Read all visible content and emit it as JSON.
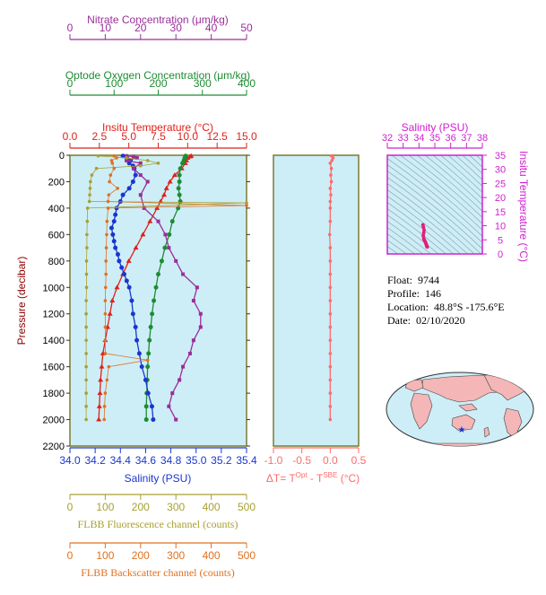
{
  "colors": {
    "nitrate": "#9b2d9b",
    "oxygen": "#1e8c32",
    "temperature": "#e0201a",
    "salinity": "#1a35d0",
    "fluorescence": "#a8a030",
    "backscatter": "#e07020",
    "dt": "#ff6b6b",
    "plot_bg": "#cdeef7",
    "frame": "#7a7a30",
    "ts_frame": "#d020d0"
  },
  "info": {
    "float_label": "Float:",
    "float": "9744",
    "profile_label": "Profile:",
    "profile": "146",
    "location_label": "Location:",
    "location": "48.8°S  -175.6°E",
    "date_label": "Date:",
    "date": "02/10/2020"
  },
  "chart_data": [
    {
      "type": "line",
      "name": "main-profile",
      "ylabel": "Pressure (decibar)",
      "ylim": [
        2200,
        0
      ],
      "yticks": [
        0,
        200,
        400,
        600,
        800,
        1000,
        1200,
        1400,
        1600,
        1800,
        2000,
        2200
      ],
      "axes": {
        "nitrate": {
          "title": "Nitrate Concentration (μm/kg)",
          "range": [
            0,
            50
          ],
          "ticks": [
            0,
            10,
            20,
            30,
            40,
            50
          ]
        },
        "oxygen": {
          "title": "Optode Oxygen Concentration (μm/kg)",
          "range": [
            0,
            400
          ],
          "ticks": [
            0,
            100,
            200,
            300,
            400
          ]
        },
        "temperature": {
          "title": "Insitu Temperature (°C)",
          "range": [
            0,
            15
          ],
          "ticks": [
            0.0,
            2.5,
            5.0,
            7.5,
            10.0,
            12.5,
            15.0
          ]
        },
        "salinity": {
          "title": "Salinity (PSU)",
          "range": [
            34.0,
            35.4
          ],
          "ticks": [
            34.0,
            34.2,
            34.4,
            34.6,
            34.8,
            35.0,
            35.2,
            35.4
          ]
        },
        "fluorescence": {
          "title": "FLBB Fluorescence channel (counts)",
          "range": [
            0,
            500
          ],
          "ticks": [
            0,
            100,
            200,
            300,
            400,
            500
          ]
        },
        "backscatter": {
          "title": "FLBB Backscatter channel (counts)",
          "range": [
            0,
            500
          ],
          "ticks": [
            0,
            100,
            200,
            300,
            400,
            500
          ]
        }
      },
      "series": [
        {
          "key": "temperature",
          "marker": "triangle",
          "p": [
            5,
            10,
            20,
            40,
            60,
            100,
            150,
            200,
            250,
            300,
            350,
            400,
            500,
            600,
            700,
            800,
            900,
            1000,
            1100,
            1200,
            1300,
            1400,
            1500,
            1600,
            1700,
            1800,
            1900,
            2000
          ],
          "v": [
            10.3,
            10.2,
            10.0,
            9.9,
            9.8,
            9.5,
            8.9,
            8.5,
            8.2,
            8.0,
            7.7,
            7.4,
            6.8,
            6.2,
            5.6,
            5.0,
            4.5,
            4.0,
            3.6,
            3.4,
            3.2,
            3.0,
            2.8,
            2.7,
            2.6,
            2.55,
            2.5,
            2.45
          ]
        },
        {
          "key": "oxygen",
          "marker": "circle",
          "p": [
            5,
            10,
            20,
            40,
            60,
            100,
            150,
            200,
            250,
            300,
            350,
            400,
            500,
            600,
            700,
            800,
            900,
            1000,
            1100,
            1200,
            1300,
            1400,
            1500,
            1600,
            1700,
            1800,
            1900,
            2000
          ],
          "v": [
            262,
            262,
            260,
            258,
            255,
            250,
            248,
            248,
            246,
            248,
            250,
            245,
            232,
            225,
            215,
            208,
            200,
            195,
            190,
            186,
            183,
            180,
            178,
            176,
            175,
            174,
            173,
            173
          ]
        },
        {
          "key": "salinity",
          "marker": "circle",
          "p": [
            5,
            20,
            40,
            60,
            80,
            100,
            150,
            200,
            250,
            300,
            350,
            400,
            450,
            500,
            550,
            600,
            650,
            700,
            750,
            800,
            850,
            900,
            950,
            1000,
            1100,
            1200,
            1300,
            1400,
            1500,
            1600,
            1700,
            1800,
            1900,
            2000
          ],
          "v": [
            34.42,
            34.45,
            34.48,
            34.47,
            34.5,
            34.51,
            34.52,
            34.5,
            34.47,
            34.42,
            34.4,
            34.37,
            34.36,
            34.35,
            34.33,
            34.34,
            34.35,
            34.36,
            34.38,
            34.39,
            34.41,
            34.43,
            34.45,
            34.47,
            34.49,
            34.5,
            34.52,
            34.53,
            34.55,
            34.57,
            34.6,
            34.62,
            34.65,
            34.66
          ]
        },
        {
          "key": "nitrate",
          "marker": "square",
          "p": [
            5,
            10,
            20,
            40,
            60,
            100,
            150,
            200,
            300,
            400,
            500,
            600,
            700,
            800,
            900,
            1000,
            1100,
            1200,
            1300,
            1400,
            1500,
            1600,
            1700,
            1800,
            1900,
            2000
          ],
          "v": [
            16,
            18,
            19,
            16,
            20,
            18,
            20,
            22,
            20,
            21,
            25,
            27,
            28,
            30,
            32,
            36,
            35,
            37,
            37,
            35,
            34,
            32,
            31,
            29,
            28,
            30
          ]
        },
        {
          "key": "fluorescence",
          "marker": "circle",
          "p": [
            5,
            20,
            40,
            60,
            80,
            100,
            150,
            200,
            250,
            300,
            350,
            360,
            400,
            500,
            600,
            700,
            800,
            900,
            1000,
            1100,
            1200,
            1300,
            1400,
            1500,
            1600,
            1700,
            1800,
            1900,
            2000
          ],
          "v": [
            80,
            160,
            220,
            250,
            200,
            75,
            62,
            58,
            57,
            56,
            55,
            500,
            50,
            49,
            48,
            48,
            47,
            47,
            47,
            46,
            46,
            46,
            46,
            46,
            46,
            46,
            46,
            46,
            46
          ]
        },
        {
          "key": "backscatter",
          "marker": "circle",
          "p": [
            5,
            20,
            40,
            60,
            100,
            150,
            200,
            250,
            300,
            350,
            380,
            400,
            500,
            600,
            700,
            800,
            900,
            1000,
            1100,
            1200,
            1300,
            1400,
            1500,
            1550,
            1600,
            1700,
            1800,
            1900,
            2000
          ],
          "v": [
            125,
            132,
            118,
            120,
            125,
            115,
            112,
            135,
            110,
            108,
            500,
            108,
            105,
            104,
            103,
            102,
            102,
            101,
            100,
            100,
            100,
            100,
            100,
            220,
            110,
            105,
            100,
            98,
            97
          ]
        }
      ]
    },
    {
      "type": "line",
      "name": "delta-t",
      "xlabel": "ΔT= Tᴼᵖᵗ - Tˢᴮᴱ (°C)",
      "xlabel_main": "ΔT= T",
      "xlabel_sup1": "Opt",
      "xlabel_mid": " - T",
      "xlabel_sup2": "SBE",
      "xlabel_tail": " (°C)",
      "xlim": [
        -1.0,
        0.5
      ],
      "xticks": [
        -1.0,
        -0.5,
        0.0,
        0.5
      ],
      "p": [
        5,
        20,
        40,
        60,
        100,
        150,
        200,
        250,
        300,
        350,
        400,
        500,
        600,
        700,
        800,
        900,
        1000,
        1100,
        1200,
        1300,
        1400,
        1500,
        1600,
        1700,
        1800,
        1900,
        2000
      ],
      "v": [
        0.02,
        0.05,
        0.03,
        0.0,
        0.02,
        0.01,
        0.02,
        0.0,
        0.01,
        0.0,
        0.0,
        0.0,
        -0.01,
        0.0,
        0.0,
        0.0,
        0.0,
        0.0,
        0.0,
        0.0,
        0.0,
        0.0,
        0.0,
        0.0,
        0.0,
        0.0,
        0.0
      ]
    },
    {
      "type": "scatter",
      "name": "ts-diagram",
      "title": "Salinity (PSU)",
      "ylabel": "Insitu Temperature (°C)",
      "xlim": [
        32,
        38
      ],
      "xticks": [
        32,
        33,
        34,
        35,
        36,
        37,
        38
      ],
      "ylim": [
        0,
        35
      ],
      "yticks": [
        0,
        5,
        10,
        15,
        20,
        25,
        30,
        35
      ],
      "s": [
        34.25,
        34.28,
        34.32,
        34.3,
        34.27,
        34.3,
        34.33,
        34.38,
        34.42,
        34.45,
        34.48,
        34.5,
        34.52
      ],
      "t": [
        10.3,
        9.5,
        8.5,
        7.5,
        6.5,
        5.5,
        5.0,
        4.5,
        4.0,
        3.5,
        3.0,
        2.7,
        2.5
      ]
    },
    {
      "type": "map",
      "name": "location-map",
      "marker_lat": -48.8,
      "marker_lon": -175.6,
      "marker_symbol": "★"
    }
  ]
}
